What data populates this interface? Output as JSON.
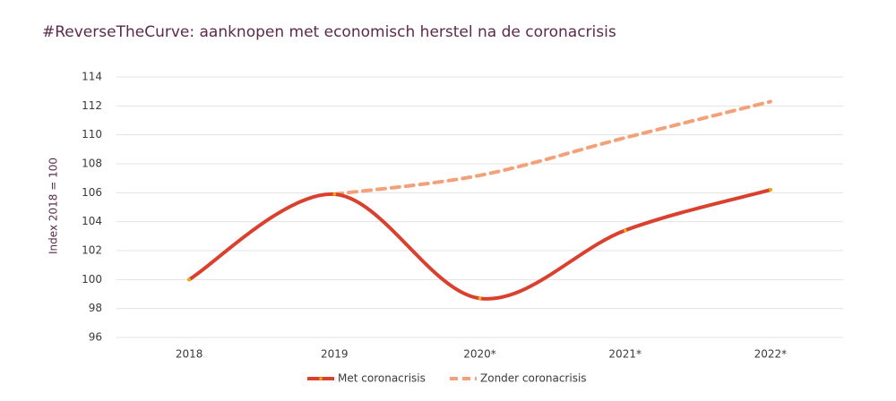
{
  "chart_data": {
    "type": "line",
    "title": "#ReverseTheCurve: aanknopen met economisch herstel na de coronacrisis",
    "y_label": "Index 2018 = 100",
    "categories": [
      "2018",
      "2019",
      "2020*",
      "2021*",
      "2022*"
    ],
    "series": [
      {
        "name": "Met coronacrisis",
        "color": "#d9412e",
        "style": "solid",
        "marker_color": "#e8b400",
        "values": [
          100,
          105.9,
          98.7,
          103.4,
          106.2
        ]
      },
      {
        "name": "Zonder coronacrisis",
        "color": "#f4a07a",
        "style": "dashed",
        "values": [
          null,
          105.9,
          107.2,
          109.8,
          112.3
        ]
      }
    ],
    "ylim": [
      96,
      114
    ],
    "yticks": [
      96,
      98,
      100,
      102,
      104,
      106,
      108,
      110,
      112,
      114
    ],
    "grid": true,
    "legend": "bottom"
  }
}
